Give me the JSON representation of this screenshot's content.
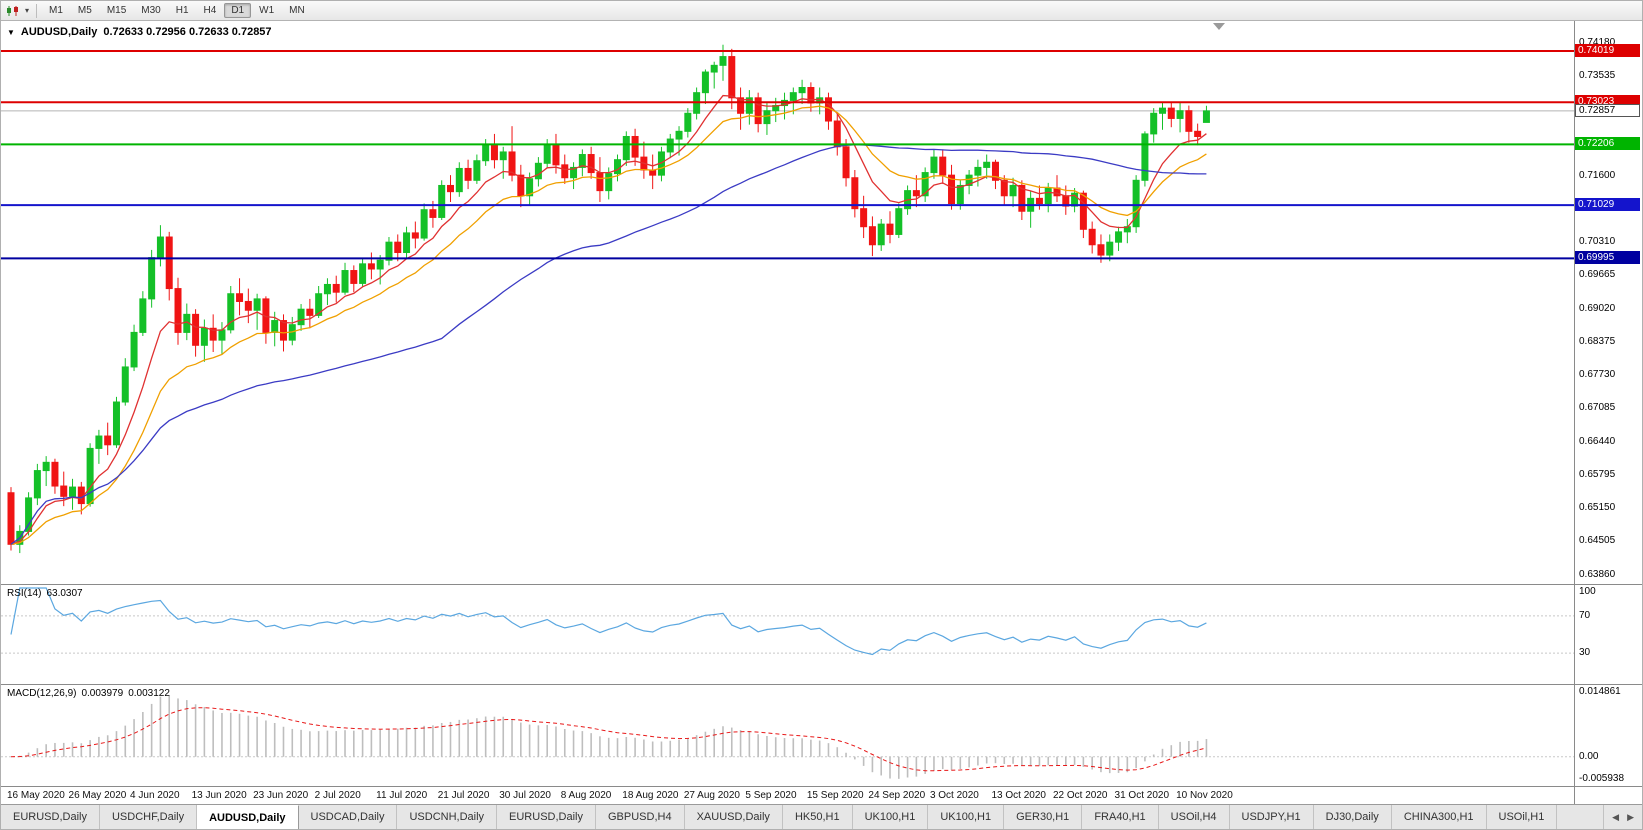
{
  "toolbar": {
    "dropdown_glyph": "▾",
    "timeframes": [
      "M1",
      "M5",
      "M15",
      "M30",
      "H1",
      "H4",
      "D1",
      "W1",
      "MN"
    ],
    "active_timeframe": "D1"
  },
  "chart": {
    "title_marker": "▼",
    "symbol_period": "AUDUSD,Daily",
    "ohlc_text": "0.72633 0.72956 0.72633 0.72857",
    "hlines": [
      {
        "price": 0.74019,
        "label": "0.74019",
        "color": "#dd0000",
        "width": 2
      },
      {
        "price": 0.73023,
        "label": "0.73023",
        "color": "#dd0000",
        "width": 2
      },
      {
        "price": 0.72206,
        "label": "0.72206",
        "color": "#00b400",
        "width": 2
      },
      {
        "price": 0.71029,
        "label": "0.71029",
        "color": "#1414cc",
        "width": 2
      },
      {
        "price": 0.69995,
        "label": "0.69995",
        "color": "#0000a0",
        "width": 2
      }
    ],
    "bid": {
      "price": 0.72857,
      "label": "0.72857"
    }
  },
  "chart_data": {
    "type": "candlestick",
    "symbol": "AUDUSD",
    "timeframe": "Daily",
    "colors": {
      "up": "#14c028",
      "down": "#f01414"
    },
    "price_scale": {
      "top": 0.746,
      "bottom": 0.6368,
      "ticks": [
        "0.74180",
        "0.73535",
        "0.72890",
        "0.72245",
        "0.71600",
        "0.70955",
        "0.70310",
        "0.69665",
        "0.69020",
        "0.68375",
        "0.67730",
        "0.67085",
        "0.66440",
        "0.65795",
        "0.65150",
        "0.64505",
        "0.63860"
      ]
    },
    "date_labels": [
      "16 May 2020",
      "26 May 2020",
      "4 Jun 2020",
      "13 Jun 2020",
      "23 Jun 2020",
      "2 Jul 2020",
      "11 Jul 2020",
      "21 Jul 2020",
      "30 Jul 2020",
      "8 Aug 2020",
      "18 Aug 2020",
      "27 Aug 2020",
      "5 Sep 2020",
      "15 Sep 2020",
      "24 Sep 2020",
      "3 Oct 2020",
      "13 Oct 2020",
      "22 Oct 2020",
      "31 Oct 2020",
      "10 Nov 2020"
    ],
    "label_every": 7,
    "candles_ohlc": [
      [
        0.6545,
        0.6556,
        0.6433,
        0.6445
      ],
      [
        0.6445,
        0.6482,
        0.6428,
        0.647
      ],
      [
        0.647,
        0.6546,
        0.6462,
        0.6535
      ],
      [
        0.6535,
        0.6601,
        0.6521,
        0.6588
      ],
      [
        0.6588,
        0.6616,
        0.6558,
        0.6604
      ],
      [
        0.6604,
        0.6611,
        0.6543,
        0.6558
      ],
      [
        0.6558,
        0.6586,
        0.6519,
        0.6538
      ],
      [
        0.6538,
        0.6572,
        0.6512,
        0.6556
      ],
      [
        0.6556,
        0.6566,
        0.6503,
        0.6524
      ],
      [
        0.6524,
        0.6641,
        0.6518,
        0.6631
      ],
      [
        0.6631,
        0.6667,
        0.6601,
        0.6655
      ],
      [
        0.6655,
        0.6681,
        0.6618,
        0.6638
      ],
      [
        0.6638,
        0.6731,
        0.6632,
        0.6721
      ],
      [
        0.6721,
        0.6806,
        0.6714,
        0.6789
      ],
      [
        0.6789,
        0.6871,
        0.6781,
        0.6856
      ],
      [
        0.6856,
        0.6936,
        0.6849,
        0.6921
      ],
      [
        0.6921,
        0.7016,
        0.6904,
        0.7001
      ],
      [
        0.7001,
        0.7064,
        0.6984,
        0.7041
      ],
      [
        0.7041,
        0.7051,
        0.6918,
        0.6941
      ],
      [
        0.6941,
        0.6962,
        0.6832,
        0.6856
      ],
      [
        0.6856,
        0.6912,
        0.6841,
        0.6891
      ],
      [
        0.6891,
        0.6901,
        0.6809,
        0.6831
      ],
      [
        0.6831,
        0.6881,
        0.6799,
        0.6864
      ],
      [
        0.6864,
        0.6891,
        0.6818,
        0.6841
      ],
      [
        0.6841,
        0.6876,
        0.6814,
        0.6861
      ],
      [
        0.6861,
        0.6946,
        0.6854,
        0.6931
      ],
      [
        0.6931,
        0.6961,
        0.6889,
        0.6916
      ],
      [
        0.6916,
        0.6941,
        0.6874,
        0.6899
      ],
      [
        0.6899,
        0.6931,
        0.6861,
        0.6921
      ],
      [
        0.6921,
        0.6926,
        0.6834,
        0.6856
      ],
      [
        0.6856,
        0.6896,
        0.6829,
        0.6879
      ],
      [
        0.6879,
        0.6891,
        0.6819,
        0.6841
      ],
      [
        0.6841,
        0.6886,
        0.6831,
        0.6871
      ],
      [
        0.6871,
        0.6911,
        0.6859,
        0.6901
      ],
      [
        0.6901,
        0.6921,
        0.6864,
        0.6889
      ],
      [
        0.6889,
        0.6946,
        0.6884,
        0.6931
      ],
      [
        0.6931,
        0.6961,
        0.6909,
        0.6949
      ],
      [
        0.6949,
        0.6966,
        0.6914,
        0.6934
      ],
      [
        0.6934,
        0.6991,
        0.6929,
        0.6976
      ],
      [
        0.6976,
        0.6986,
        0.6934,
        0.6951
      ],
      [
        0.6951,
        0.7001,
        0.6944,
        0.6989
      ],
      [
        0.6989,
        0.7011,
        0.6959,
        0.6979
      ],
      [
        0.6979,
        0.7006,
        0.6949,
        0.6996
      ],
      [
        0.6996,
        0.7041,
        0.6986,
        0.7031
      ],
      [
        0.7031,
        0.7046,
        0.6994,
        0.7011
      ],
      [
        0.7011,
        0.7061,
        0.7001,
        0.7049
      ],
      [
        0.7049,
        0.7071,
        0.7019,
        0.7039
      ],
      [
        0.7039,
        0.7106,
        0.7034,
        0.7094
      ],
      [
        0.7094,
        0.7111,
        0.7059,
        0.7079
      ],
      [
        0.7079,
        0.7151,
        0.7074,
        0.7141
      ],
      [
        0.7141,
        0.7161,
        0.7109,
        0.7129
      ],
      [
        0.7129,
        0.7186,
        0.7119,
        0.7174
      ],
      [
        0.7174,
        0.7191,
        0.7134,
        0.7151
      ],
      [
        0.7151,
        0.7201,
        0.7144,
        0.7189
      ],
      [
        0.7189,
        0.7231,
        0.7179,
        0.7219
      ],
      [
        0.7219,
        0.7241,
        0.7174,
        0.7191
      ],
      [
        0.7191,
        0.7216,
        0.7154,
        0.7206
      ],
      [
        0.7206,
        0.7256,
        0.7149,
        0.7161
      ],
      [
        0.7161,
        0.7181,
        0.7099,
        0.7121
      ],
      [
        0.7121,
        0.7166,
        0.7104,
        0.7154
      ],
      [
        0.7154,
        0.7196,
        0.7139,
        0.7184
      ],
      [
        0.7184,
        0.7231,
        0.7174,
        0.7221
      ],
      [
        0.7221,
        0.7241,
        0.7164,
        0.7181
      ],
      [
        0.7181,
        0.7201,
        0.7144,
        0.7156
      ],
      [
        0.7156,
        0.7186,
        0.7134,
        0.7176
      ],
      [
        0.7176,
        0.7211,
        0.7159,
        0.7201
      ],
      [
        0.7201,
        0.7216,
        0.7154,
        0.7166
      ],
      [
        0.7166,
        0.7196,
        0.7109,
        0.7131
      ],
      [
        0.7131,
        0.7176,
        0.7114,
        0.7164
      ],
      [
        0.7164,
        0.7201,
        0.7149,
        0.7191
      ],
      [
        0.7191,
        0.7246,
        0.7179,
        0.7236
      ],
      [
        0.7236,
        0.7251,
        0.7179,
        0.7196
      ],
      [
        0.7196,
        0.7226,
        0.7154,
        0.7171
      ],
      [
        0.7171,
        0.7201,
        0.7134,
        0.7161
      ],
      [
        0.7161,
        0.7216,
        0.7149,
        0.7206
      ],
      [
        0.7206,
        0.7241,
        0.7194,
        0.7231
      ],
      [
        0.7231,
        0.7256,
        0.7199,
        0.7246
      ],
      [
        0.7246,
        0.7291,
        0.7234,
        0.7281
      ],
      [
        0.7281,
        0.7331,
        0.7269,
        0.7321
      ],
      [
        0.7321,
        0.7366,
        0.7299,
        0.7361
      ],
      [
        0.7361,
        0.7381,
        0.7329,
        0.7374
      ],
      [
        0.7374,
        0.7414,
        0.7344,
        0.7391
      ],
      [
        0.7391,
        0.7406,
        0.7289,
        0.7311
      ],
      [
        0.7311,
        0.7331,
        0.7249,
        0.7281
      ],
      [
        0.7281,
        0.7326,
        0.7259,
        0.7311
      ],
      [
        0.7311,
        0.7321,
        0.7244,
        0.7261
      ],
      [
        0.7261,
        0.7301,
        0.7239,
        0.7286
      ],
      [
        0.7286,
        0.7311,
        0.7264,
        0.7296
      ],
      [
        0.7296,
        0.7321,
        0.7269,
        0.7306
      ],
      [
        0.7306,
        0.7331,
        0.7279,
        0.7321
      ],
      [
        0.7321,
        0.7346,
        0.7299,
        0.7331
      ],
      [
        0.7331,
        0.7341,
        0.7284,
        0.7301
      ],
      [
        0.7301,
        0.7331,
        0.7279,
        0.7311
      ],
      [
        0.7311,
        0.7321,
        0.7249,
        0.7266
      ],
      [
        0.7266,
        0.7281,
        0.7199,
        0.7216
      ],
      [
        0.7216,
        0.7231,
        0.7139,
        0.7156
      ],
      [
        0.7156,
        0.7171,
        0.7079,
        0.7096
      ],
      [
        0.7096,
        0.7121,
        0.7039,
        0.7061
      ],
      [
        0.7061,
        0.7081,
        0.7004,
        0.7026
      ],
      [
        0.7026,
        0.7076,
        0.7014,
        0.7066
      ],
      [
        0.7066,
        0.7091,
        0.7029,
        0.7046
      ],
      [
        0.7046,
        0.7106,
        0.7039,
        0.7096
      ],
      [
        0.7096,
        0.7141,
        0.7084,
        0.7131
      ],
      [
        0.7131,
        0.7161,
        0.7099,
        0.7121
      ],
      [
        0.7121,
        0.7176,
        0.7109,
        0.7166
      ],
      [
        0.7166,
        0.7211,
        0.7154,
        0.7196
      ],
      [
        0.7196,
        0.7211,
        0.7144,
        0.7161
      ],
      [
        0.7161,
        0.7181,
        0.7094,
        0.7106
      ],
      [
        0.7106,
        0.7151,
        0.7094,
        0.7141
      ],
      [
        0.7141,
        0.7171,
        0.7124,
        0.7161
      ],
      [
        0.7161,
        0.7191,
        0.7139,
        0.7176
      ],
      [
        0.7176,
        0.7201,
        0.7154,
        0.7186
      ],
      [
        0.7186,
        0.7191,
        0.7134,
        0.7151
      ],
      [
        0.7151,
        0.7161,
        0.7104,
        0.7121
      ],
      [
        0.7121,
        0.7156,
        0.7099,
        0.7141
      ],
      [
        0.7141,
        0.7151,
        0.7074,
        0.7091
      ],
      [
        0.7091,
        0.7131,
        0.7059,
        0.7116
      ],
      [
        0.7116,
        0.7141,
        0.7094,
        0.7106
      ],
      [
        0.7106,
        0.7146,
        0.7089,
        0.7136
      ],
      [
        0.7136,
        0.7161,
        0.7109,
        0.7121
      ],
      [
        0.7121,
        0.7141,
        0.7084,
        0.7101
      ],
      [
        0.7101,
        0.7136,
        0.7089,
        0.7126
      ],
      [
        0.7126,
        0.7131,
        0.7039,
        0.7056
      ],
      [
        0.7056,
        0.7071,
        0.7009,
        0.7026
      ],
      [
        0.7026,
        0.7046,
        0.6991,
        0.7006
      ],
      [
        0.7006,
        0.7046,
        0.6994,
        0.7031
      ],
      [
        0.7031,
        0.7061,
        0.7014,
        0.7051
      ],
      [
        0.7051,
        0.7076,
        0.7029,
        0.7061
      ],
      [
        0.7061,
        0.7161,
        0.7049,
        0.7151
      ],
      [
        0.7151,
        0.7246,
        0.7139,
        0.7241
      ],
      [
        0.7241,
        0.7291,
        0.7224,
        0.7281
      ],
      [
        0.7281,
        0.7301,
        0.7249,
        0.7291
      ],
      [
        0.7291,
        0.7301,
        0.7254,
        0.7271
      ],
      [
        0.7271,
        0.7301,
        0.7244,
        0.7286
      ],
      [
        0.7286,
        0.7296,
        0.7224,
        0.7246
      ],
      [
        0.7246,
        0.7261,
        0.7219,
        0.7236
      ],
      [
        0.72633,
        0.72956,
        0.72633,
        0.72857
      ]
    ],
    "moving_averages": [
      {
        "period": 8,
        "method": "ema",
        "color": "#e03131"
      },
      {
        "period": 16,
        "method": "ema",
        "color": "#f0a000"
      },
      {
        "period": 50,
        "method": "sma",
        "color": "#3b3bc4"
      }
    ],
    "rsi": {
      "label": "RSI(14)",
      "value": "63.0307",
      "period": 14,
      "levels": [
        70,
        30
      ],
      "scale_top": "100",
      "color": "#5ba7e0"
    },
    "macd": {
      "label": "MACD(12,26,9)",
      "value_macd": "0.003979",
      "value_signal": "0.003122",
      "fast": 12,
      "slow": 26,
      "signal_period": 9,
      "range_top": 0.0152,
      "range_bottom": -0.0062,
      "scale_top": "0.014861",
      "scale_zero": "0.00",
      "scale_bottom": "-0.005938",
      "hist_color": "#bebebe",
      "signal_color": "#e81818"
    }
  },
  "tabs": {
    "items": [
      "EURUSD,Daily",
      "USDCHF,Daily",
      "AUDUSD,Daily",
      "USDCAD,Daily",
      "USDCNH,Daily",
      "EURUSD,Daily",
      "GBPUSD,H4",
      "XAUUSD,Daily",
      "HK50,H1",
      "UK100,H1",
      "UK100,H1",
      "GER30,H1",
      "FRA40,H1",
      "USOil,H4",
      "USDJPY,H1",
      "DJ30,Daily",
      "CHINA300,H1",
      "USOil,H1"
    ],
    "active_index": 2,
    "left_arrow": "◀",
    "right_arrow": "▶"
  }
}
